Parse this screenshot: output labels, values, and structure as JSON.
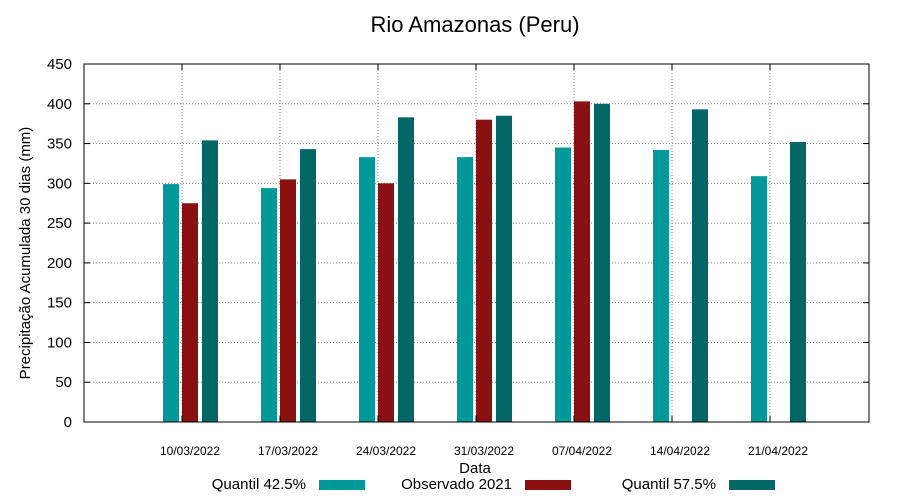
{
  "chart_data": {
    "type": "bar",
    "title": "Rio Amazonas (Peru)",
    "xlabel": "Data",
    "ylabel": "Precipitação Acumulada 30 dias (mm)",
    "ylim": [
      0,
      450
    ],
    "yticks": [
      0,
      50,
      100,
      150,
      200,
      250,
      300,
      350,
      400,
      450
    ],
    "grid": true,
    "legend_position": "bottom",
    "categories": [
      "10/03/2022",
      "17/03/2022",
      "24/03/2022",
      "31/03/2022",
      "07/04/2022",
      "14/04/2022",
      "21/04/2022"
    ],
    "series": [
      {
        "name": "Quantil 42.5%",
        "color": "#009999",
        "values": [
          299,
          294,
          333,
          333,
          345,
          342,
          309
        ]
      },
      {
        "name": "Observado 2021",
        "color": "#8b1010",
        "values": [
          275,
          305,
          300,
          380,
          403,
          null,
          null
        ]
      },
      {
        "name": "Quantil 57.5%",
        "color": "#006666",
        "values": [
          354,
          343,
          383,
          385,
          400,
          393,
          352
        ]
      }
    ]
  }
}
